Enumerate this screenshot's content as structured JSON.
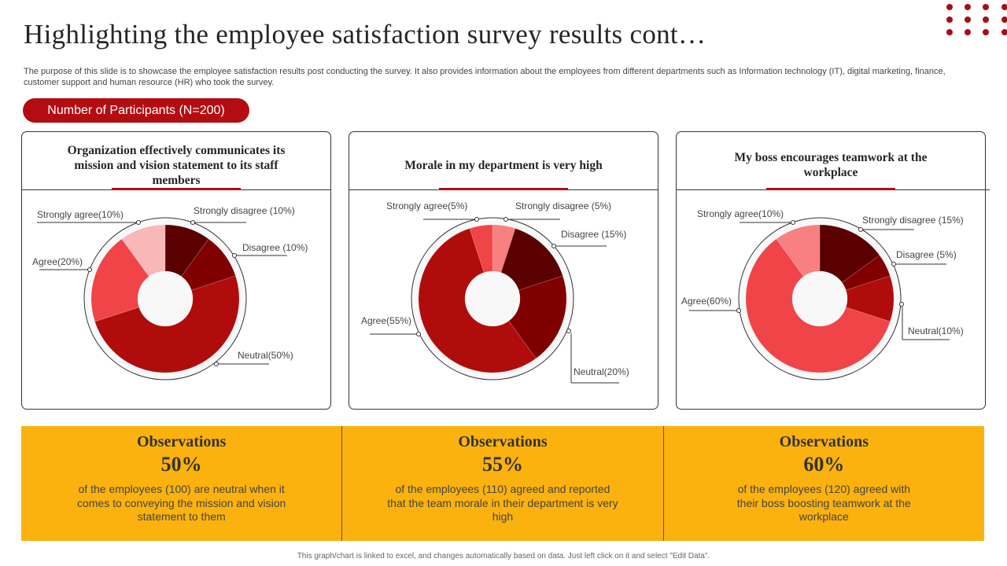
{
  "title": "Highlighting the employee satisfaction survey results cont…",
  "description": "The purpose of this slide is to showcase the employee satisfaction results post conducting the survey. It also provides information about the employees from different departments such as Information technology (IT), digital marketing, finance, customer support and human resource (HR) who took the survey.",
  "participants_label": "Number of Participants (N=200)",
  "colors": {
    "accent": "#b30d12",
    "observations_bg": "#fbb20f",
    "dots": "#a50f15"
  },
  "chart_data": [
    {
      "type": "pie",
      "title": "Organization effectively communicates its mission and vision statement to its staff members",
      "categories": [
        "Strongly disagree",
        "Disagree",
        "Neutral",
        "Agree",
        "Strongly agree"
      ],
      "values": [
        10,
        10,
        50,
        20,
        10
      ],
      "labels": [
        "Strongly disagree (10%)",
        "Disagree (10%)",
        "Neutral(50%)",
        "Agree(20%)",
        "Strongly agree(10%)"
      ],
      "colors": [
        "#5a0000",
        "#800000",
        "#b00c0c",
        "#f04448",
        "#f9b8b8"
      ]
    },
    {
      "type": "pie",
      "title": "Morale in my department is very high",
      "categories": [
        "Strongly disagree",
        "Disagree",
        "Neutral",
        "Agree",
        "Strongly agree"
      ],
      "values": [
        5,
        15,
        20,
        55,
        5
      ],
      "labels": [
        "Strongly disagree (5%)",
        "Disagree (15%)",
        "Neutral(20%)",
        "Agree(55%)",
        "Strongly agree(5%)"
      ],
      "colors": [
        "#f88080",
        "#5a0000",
        "#800000",
        "#b00c0c",
        "#f04448"
      ]
    },
    {
      "type": "pie",
      "title": "My boss encourages teamwork at the workplace",
      "categories": [
        "Strongly disagree",
        "Disagree",
        "Neutral",
        "Agree",
        "Strongly agree"
      ],
      "values": [
        15,
        5,
        10,
        60,
        10
      ],
      "labels": [
        "Strongly disagree (15%)",
        "Disagree (5%)",
        "Neutral(10%)",
        "Agree(60%)",
        "Strongly agree(10%)"
      ],
      "colors": [
        "#5a0000",
        "#800000",
        "#b00c0c",
        "#f04448",
        "#f88080"
      ]
    }
  ],
  "observations": [
    {
      "heading": "Observations",
      "percent": "50%",
      "text": "of the employees (100) are neutral when it comes to conveying the mission and vision statement to them"
    },
    {
      "heading": "Observations",
      "percent": "55%",
      "text": "of the employees (110) agreed and reported that the team morale in their department is very high"
    },
    {
      "heading": "Observations",
      "percent": "60%",
      "text": "of the employees (120) agreed with their boss boosting teamwork at the workplace"
    }
  ],
  "footer": "This graph/chart is linked to excel, and changes automatically based on data. Just left click on it and select \"Edit Data\"."
}
